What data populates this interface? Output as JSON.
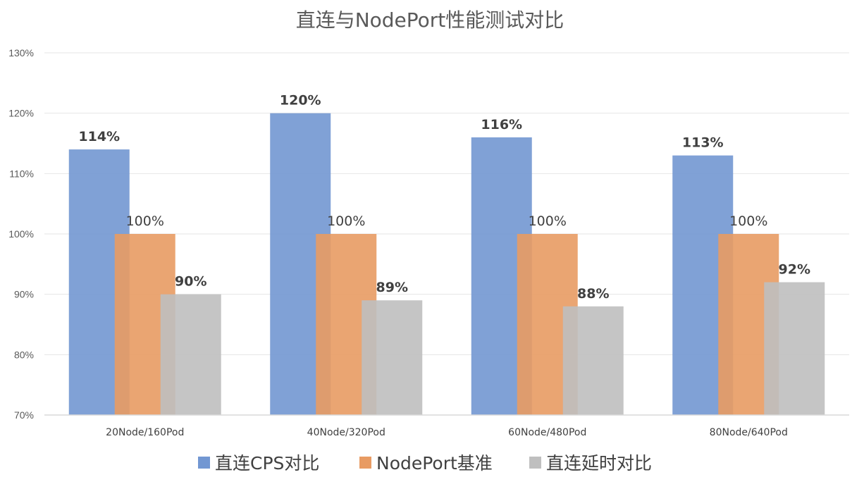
{
  "chart_data": {
    "type": "bar",
    "title": "直连与NodePort性能测试对比",
    "xlabel": "",
    "ylabel": "",
    "categories": [
      "20Node/160Pod",
      "40Node/320Pod",
      "60Node/480Pod",
      "80Node/640Pod"
    ],
    "series": [
      {
        "name": "直连CPS对比",
        "values": [
          114,
          120,
          116,
          113
        ],
        "labels": [
          "114%",
          "120%",
          "116%",
          "113%"
        ],
        "color": "#7297d2",
        "label_bold": true
      },
      {
        "name": "NodePort基准",
        "values": [
          100,
          100,
          100,
          100
        ],
        "labels": [
          "100%",
          "100%",
          "100%",
          "100%"
        ],
        "color": "#e89b63",
        "label_bold": false
      },
      {
        "name": "直连延时对比",
        "values": [
          90,
          89,
          88,
          92
        ],
        "labels": [
          "90%",
          "89%",
          "88%",
          "92%"
        ],
        "color": "#bfbfbf",
        "label_bold": true
      }
    ],
    "ylim": [
      70,
      130
    ],
    "yticks": [
      70,
      80,
      90,
      100,
      110,
      120,
      130
    ],
    "ytick_labels": [
      "70%",
      "80%",
      "90%",
      "100%",
      "110%",
      "120%",
      "130%"
    ],
    "grid": true,
    "legend": "bottom"
  }
}
